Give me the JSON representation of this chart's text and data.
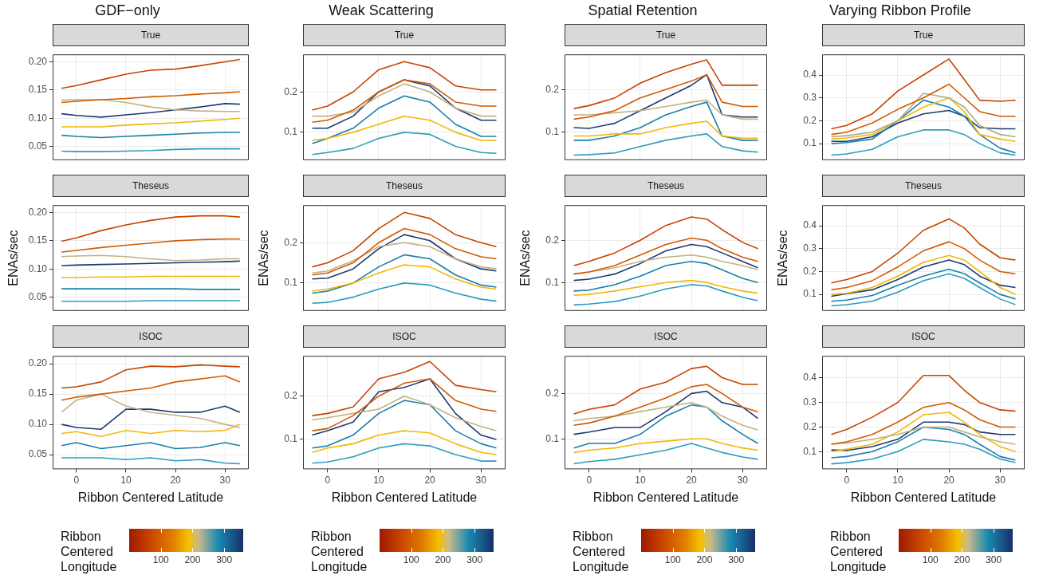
{
  "chart_data": [
    {
      "type": "line",
      "title": "GDF−only",
      "subtitle": "True",
      "x": [
        -3,
        0,
        5,
        10,
        15,
        20,
        25,
        30,
        33
      ],
      "xlim": [
        -4.8,
        34.8
      ],
      "xticks": [
        0,
        10,
        20,
        30
      ],
      "ylim": [
        0.026,
        0.213
      ],
      "yticks": [
        {
          "value": 0.05,
          "label": "0.05"
        },
        {
          "value": 0.1,
          "label": "0.10"
        },
        {
          "value": 0.15,
          "label": "0.15"
        },
        {
          "value": 0.2,
          "label": "0.20"
        }
      ],
      "grid": true,
      "tick_labels": "y",
      "series": [
        {
          "color": "#c84300",
          "values": [
            0.153,
            0.158,
            0.168,
            0.178,
            0.185,
            0.187,
            0.193,
            0.2,
            0.204
          ]
        },
        {
          "color": "#d25a00",
          "values": [
            0.128,
            0.13,
            0.133,
            0.135,
            0.138,
            0.14,
            0.143,
            0.145,
            0.147
          ]
        },
        {
          "color": "#c2b280",
          "values": [
            0.132,
            0.133,
            0.133,
            0.128,
            0.12,
            0.115,
            0.113,
            0.112,
            0.112
          ]
        },
        {
          "color": "#f2b705",
          "values": [
            0.085,
            0.085,
            0.085,
            0.088,
            0.09,
            0.092,
            0.095,
            0.098,
            0.1
          ]
        },
        {
          "color": "#1b3a73",
          "values": [
            0.108,
            0.105,
            0.102,
            0.106,
            0.11,
            0.115,
            0.12,
            0.126,
            0.125
          ]
        },
        {
          "color": "#1a7fa8",
          "values": [
            0.07,
            0.068,
            0.066,
            0.068,
            0.07,
            0.072,
            0.074,
            0.075,
            0.075
          ]
        },
        {
          "color": "#2a9cc0",
          "values": [
            0.042,
            0.041,
            0.041,
            0.042,
            0.043,
            0.045,
            0.046,
            0.046,
            0.046
          ]
        }
      ]
    },
    {
      "type": "line",
      "title": "Weak Scattering",
      "subtitle": "True",
      "x": [
        -3,
        0,
        5,
        10,
        15,
        20,
        25,
        30,
        33
      ],
      "xlim": [
        -4.8,
        34.8
      ],
      "xticks": [
        0,
        10,
        20,
        30
      ],
      "ylim": [
        0.031,
        0.293
      ],
      "yticks": [
        0.1,
        0.2
      ],
      "grid": true,
      "tick_labels": "y",
      "series": [
        {
          "color": "#c84300",
          "values": [
            0.155,
            0.165,
            0.2,
            0.255,
            0.275,
            0.26,
            0.215,
            0.205,
            0.205
          ]
        },
        {
          "color": "#d25a00",
          "values": [
            0.125,
            0.13,
            0.155,
            0.2,
            0.23,
            0.22,
            0.175,
            0.165,
            0.165
          ]
        },
        {
          "color": "#c2b280",
          "values": [
            0.14,
            0.14,
            0.15,
            0.19,
            0.22,
            0.2,
            0.16,
            0.14,
            0.14
          ]
        },
        {
          "color": "#f2b705",
          "values": [
            0.08,
            0.085,
            0.1,
            0.12,
            0.14,
            0.13,
            0.1,
            0.08,
            0.08
          ]
        },
        {
          "color": "#1b3a73",
          "values": [
            0.11,
            0.11,
            0.14,
            0.2,
            0.23,
            0.215,
            0.16,
            0.13,
            0.13
          ]
        },
        {
          "color": "#1a7fa8",
          "values": [
            0.072,
            0.085,
            0.11,
            0.16,
            0.19,
            0.175,
            0.12,
            0.09,
            0.09
          ]
        },
        {
          "color": "#2a9cc0",
          "values": [
            0.045,
            0.05,
            0.06,
            0.085,
            0.1,
            0.095,
            0.065,
            0.05,
            0.048
          ]
        }
      ]
    },
    {
      "type": "line",
      "title": "Spatial Retention",
      "subtitle": "True",
      "x": [
        -3,
        0,
        5,
        10,
        15,
        20,
        23,
        26,
        30,
        33
      ],
      "xlim": [
        -4.8,
        34.8
      ],
      "xticks": [
        0,
        10,
        20,
        30
      ],
      "ylim": [
        0.033,
        0.283
      ],
      "yticks": [
        0.1,
        0.2
      ],
      "grid": true,
      "tick_labels": "y",
      "series": [
        {
          "color": "#c84300",
          "values": [
            0.155,
            0.162,
            0.18,
            0.215,
            0.24,
            0.26,
            0.27,
            0.21,
            0.21,
            0.21
          ]
        },
        {
          "color": "#d25a00",
          "values": [
            0.13,
            0.135,
            0.15,
            0.18,
            0.2,
            0.22,
            0.235,
            0.17,
            0.16,
            0.16
          ]
        },
        {
          "color": "#c2b280",
          "values": [
            0.14,
            0.14,
            0.145,
            0.15,
            0.16,
            0.17,
            0.175,
            0.14,
            0.13,
            0.13
          ]
        },
        {
          "color": "#f2b705",
          "values": [
            0.09,
            0.09,
            0.095,
            0.095,
            0.11,
            0.12,
            0.125,
            0.09,
            0.085,
            0.085
          ]
        },
        {
          "color": "#1b3a73",
          "values": [
            0.11,
            0.108,
            0.12,
            0.15,
            0.18,
            0.21,
            0.235,
            0.14,
            0.135,
            0.135
          ]
        },
        {
          "color": "#1a7fa8",
          "values": [
            0.08,
            0.08,
            0.09,
            0.11,
            0.14,
            0.16,
            0.17,
            0.09,
            0.08,
            0.08
          ]
        },
        {
          "color": "#2a9cc0",
          "values": [
            0.045,
            0.046,
            0.05,
            0.065,
            0.08,
            0.09,
            0.095,
            0.065,
            0.055,
            0.052
          ]
        }
      ]
    },
    {
      "type": "line",
      "title": "Varying Ribbon Profile",
      "subtitle": "True",
      "x": [
        -3,
        0,
        5,
        10,
        15,
        20,
        23,
        26,
        30,
        33
      ],
      "xlim": [
        -4.8,
        34.8
      ],
      "xticks": [
        0,
        10,
        20,
        30
      ],
      "ylim": [
        0.028,
        0.49
      ],
      "yticks": [
        0.1,
        0.2,
        0.3,
        0.4
      ],
      "grid": true,
      "tick_labels": "y",
      "series": [
        {
          "color": "#c84300",
          "values": [
            0.165,
            0.18,
            0.23,
            0.33,
            0.4,
            0.47,
            0.38,
            0.29,
            0.285,
            0.29
          ]
        },
        {
          "color": "#d25a00",
          "values": [
            0.14,
            0.15,
            0.19,
            0.25,
            0.3,
            0.36,
            0.3,
            0.24,
            0.22,
            0.22
          ]
        },
        {
          "color": "#a9a98a",
          "values": [
            0.13,
            0.135,
            0.15,
            0.2,
            0.32,
            0.3,
            0.26,
            0.18,
            0.14,
            0.13
          ]
        },
        {
          "color": "#f2b705",
          "values": [
            0.12,
            0.125,
            0.14,
            0.2,
            0.26,
            0.3,
            0.24,
            0.14,
            0.12,
            0.11
          ]
        },
        {
          "color": "#1a7fa8",
          "values": [
            0.1,
            0.105,
            0.12,
            0.2,
            0.29,
            0.26,
            0.22,
            0.14,
            0.08,
            0.06
          ]
        },
        {
          "color": "#1b3a73",
          "values": [
            0.11,
            0.11,
            0.13,
            0.19,
            0.23,
            0.245,
            0.22,
            0.17,
            0.165,
            0.165
          ]
        },
        {
          "color": "#2a9cc0",
          "values": [
            0.05,
            0.055,
            0.075,
            0.13,
            0.16,
            0.16,
            0.14,
            0.1,
            0.06,
            0.05
          ]
        }
      ]
    },
    {
      "type": "line",
      "subtitle": "Theseus",
      "ylabel": "ENAs/sec",
      "x": [
        -3,
        0,
        5,
        10,
        15,
        20,
        25,
        30,
        33
      ],
      "xlim": [
        -4.8,
        34.8
      ],
      "xticks": [
        0,
        10,
        20,
        30
      ],
      "ylim": [
        0.026,
        0.213
      ],
      "yticks": [
        {
          "value": 0.05,
          "label": "0.05"
        },
        {
          "value": 0.1,
          "label": "0.10"
        },
        {
          "value": 0.15,
          "label": "0.15"
        },
        {
          "value": 0.2,
          "label": "0.20"
        }
      ],
      "grid": true,
      "tick_labels": "y",
      "series": [
        {
          "color": "#c84300",
          "values": [
            0.149,
            0.155,
            0.168,
            0.178,
            0.186,
            0.192,
            0.194,
            0.194,
            0.192
          ]
        },
        {
          "color": "#d25a00",
          "values": [
            0.13,
            0.133,
            0.138,
            0.142,
            0.146,
            0.15,
            0.152,
            0.153,
            0.153
          ]
        },
        {
          "color": "#c2b280",
          "values": [
            0.122,
            0.123,
            0.124,
            0.122,
            0.118,
            0.115,
            0.116,
            0.118,
            0.118
          ]
        },
        {
          "color": "#f2b705",
          "values": [
            0.085,
            0.085,
            0.086,
            0.086,
            0.087,
            0.087,
            0.087,
            0.087,
            0.087
          ]
        },
        {
          "color": "#1b3a73",
          "values": [
            0.106,
            0.107,
            0.108,
            0.109,
            0.11,
            0.111,
            0.112,
            0.113,
            0.114
          ]
        },
        {
          "color": "#1a7fa8",
          "values": [
            0.065,
            0.065,
            0.065,
            0.065,
            0.065,
            0.065,
            0.064,
            0.064,
            0.064
          ]
        },
        {
          "color": "#2a9cc0",
          "values": [
            0.043,
            0.043,
            0.043,
            0.043,
            0.044,
            0.044,
            0.044,
            0.044,
            0.044
          ]
        }
      ]
    },
    {
      "type": "line",
      "subtitle": "Theseus",
      "ylabel": "ENAs/sec",
      "x": [
        -3,
        0,
        5,
        10,
        15,
        20,
        25,
        30,
        33
      ],
      "xlim": [
        -4.8,
        34.8
      ],
      "xticks": [
        0,
        10,
        20,
        30
      ],
      "ylim": [
        0.031,
        0.293
      ],
      "yticks": [
        0.1,
        0.2
      ],
      "grid": true,
      "tick_labels": "y",
      "series": [
        {
          "color": "#c84300",
          "values": [
            0.14,
            0.15,
            0.18,
            0.235,
            0.275,
            0.26,
            0.22,
            0.2,
            0.19
          ]
        },
        {
          "color": "#d25a00",
          "values": [
            0.12,
            0.125,
            0.15,
            0.2,
            0.235,
            0.22,
            0.185,
            0.165,
            0.16
          ]
        },
        {
          "color": "#c2b280",
          "values": [
            0.125,
            0.13,
            0.155,
            0.19,
            0.2,
            0.19,
            0.16,
            0.14,
            0.135
          ]
        },
        {
          "color": "#f2b705",
          "values": [
            0.08,
            0.085,
            0.1,
            0.125,
            0.145,
            0.14,
            0.11,
            0.09,
            0.085
          ]
        },
        {
          "color": "#1b3a73",
          "values": [
            0.11,
            0.112,
            0.135,
            0.185,
            0.22,
            0.205,
            0.16,
            0.135,
            0.13
          ]
        },
        {
          "color": "#1a7fa8",
          "values": [
            0.075,
            0.08,
            0.1,
            0.14,
            0.17,
            0.16,
            0.12,
            0.095,
            0.09
          ]
        },
        {
          "color": "#2a9cc0",
          "values": [
            0.05,
            0.052,
            0.065,
            0.085,
            0.1,
            0.095,
            0.075,
            0.06,
            0.055
          ]
        }
      ]
    },
    {
      "type": "line",
      "subtitle": "Theseus",
      "ylabel": "ENAs/sec",
      "x": [
        -3,
        0,
        5,
        10,
        15,
        20,
        23,
        26,
        30,
        33
      ],
      "xlim": [
        -4.8,
        34.8
      ],
      "xticks": [
        0,
        10,
        20,
        30
      ],
      "ylim": [
        0.033,
        0.283
      ],
      "yticks": [
        0.1,
        0.2
      ],
      "grid": true,
      "tick_labels": "y",
      "series": [
        {
          "color": "#c84300",
          "values": [
            0.14,
            0.15,
            0.17,
            0.2,
            0.235,
            0.255,
            0.25,
            0.225,
            0.195,
            0.18
          ]
        },
        {
          "color": "#d25a00",
          "values": [
            0.12,
            0.125,
            0.14,
            0.165,
            0.19,
            0.205,
            0.2,
            0.18,
            0.16,
            0.15
          ]
        },
        {
          "color": "#c2b280",
          "values": [
            0.12,
            0.125,
            0.135,
            0.15,
            0.16,
            0.165,
            0.16,
            0.15,
            0.14,
            0.13
          ]
        },
        {
          "color": "#f2b705",
          "values": [
            0.07,
            0.072,
            0.08,
            0.09,
            0.1,
            0.105,
            0.1,
            0.09,
            0.08,
            0.075
          ]
        },
        {
          "color": "#1b3a73",
          "values": [
            0.105,
            0.108,
            0.12,
            0.145,
            0.175,
            0.19,
            0.185,
            0.17,
            0.15,
            0.135
          ]
        },
        {
          "color": "#1a7fa8",
          "values": [
            0.08,
            0.082,
            0.095,
            0.115,
            0.14,
            0.15,
            0.145,
            0.13,
            0.11,
            0.1
          ]
        },
        {
          "color": "#2a9cc0",
          "values": [
            0.047,
            0.049,
            0.055,
            0.068,
            0.085,
            0.095,
            0.092,
            0.08,
            0.065,
            0.057
          ]
        }
      ]
    },
    {
      "type": "line",
      "subtitle": "Theseus",
      "ylabel": "ENAs/sec",
      "x": [
        -3,
        0,
        5,
        10,
        15,
        20,
        23,
        26,
        30,
        33
      ],
      "xlim": [
        -4.8,
        34.8
      ],
      "xticks": [
        0,
        10,
        20,
        30
      ],
      "ylim": [
        0.028,
        0.49
      ],
      "yticks": [
        0.1,
        0.2,
        0.3,
        0.4
      ],
      "grid": true,
      "tick_labels": "y",
      "series": [
        {
          "color": "#c84300",
          "values": [
            0.15,
            0.165,
            0.2,
            0.28,
            0.38,
            0.43,
            0.39,
            0.32,
            0.26,
            0.25
          ]
        },
        {
          "color": "#d25a00",
          "values": [
            0.12,
            0.13,
            0.16,
            0.22,
            0.29,
            0.33,
            0.3,
            0.25,
            0.2,
            0.19
          ]
        },
        {
          "color": "#f2b705",
          "values": [
            0.1,
            0.105,
            0.13,
            0.18,
            0.24,
            0.27,
            0.25,
            0.2,
            0.13,
            0.1
          ]
        },
        {
          "color": "#1b3a73",
          "values": [
            0.092,
            0.103,
            0.12,
            0.165,
            0.22,
            0.25,
            0.23,
            0.18,
            0.14,
            0.13
          ]
        },
        {
          "color": "#1a7fa8",
          "values": [
            0.07,
            0.075,
            0.095,
            0.14,
            0.18,
            0.21,
            0.19,
            0.15,
            0.1,
            0.08
          ]
        },
        {
          "color": "#2a9cc0",
          "values": [
            0.05,
            0.055,
            0.07,
            0.11,
            0.16,
            0.19,
            0.17,
            0.13,
            0.08,
            0.055
          ]
        }
      ]
    },
    {
      "type": "line",
      "subtitle": "ISOC",
      "xlabel": "Ribbon Centered Latitude",
      "clabel": "Ribbon Centered Longitude",
      "clim": [
        0,
        360
      ],
      "cticks": [
        100,
        200,
        300
      ],
      "x": [
        -3,
        0,
        5,
        10,
        15,
        20,
        25,
        30,
        33
      ],
      "xlim": [
        -4.8,
        34.8
      ],
      "xticks": [
        0,
        10,
        20,
        30
      ],
      "ylim": [
        0.026,
        0.213
      ],
      "yticks": [
        {
          "value": 0.05,
          "label": "0.05"
        },
        {
          "value": 0.1,
          "label": "0.10"
        },
        {
          "value": 0.15,
          "label": "0.15"
        },
        {
          "value": 0.2,
          "label": "0.20"
        }
      ],
      "grid": true,
      "series": [
        {
          "color": "#c84300",
          "values": [
            0.16,
            0.162,
            0.17,
            0.19,
            0.196,
            0.195,
            0.198,
            0.196,
            0.195
          ]
        },
        {
          "color": "#d25a00",
          "values": [
            0.14,
            0.145,
            0.15,
            0.155,
            0.16,
            0.17,
            0.175,
            0.18,
            0.17
          ]
        },
        {
          "color": "#c2b280",
          "values": [
            0.12,
            0.14,
            0.15,
            0.13,
            0.12,
            0.115,
            0.11,
            0.1,
            0.095
          ]
        },
        {
          "color": "#f2b705",
          "values": [
            0.085,
            0.088,
            0.08,
            0.09,
            0.085,
            0.09,
            0.088,
            0.09,
            0.1
          ]
        },
        {
          "color": "#1b3a73",
          "values": [
            0.1,
            0.095,
            0.092,
            0.125,
            0.125,
            0.12,
            0.12,
            0.13,
            0.12
          ]
        },
        {
          "color": "#1a7fa8",
          "values": [
            0.065,
            0.07,
            0.06,
            0.065,
            0.07,
            0.06,
            0.062,
            0.07,
            0.065
          ]
        },
        {
          "color": "#2a9cc0",
          "values": [
            0.045,
            0.045,
            0.045,
            0.042,
            0.045,
            0.04,
            0.042,
            0.036,
            0.035
          ]
        }
      ]
    },
    {
      "type": "line",
      "subtitle": "ISOC",
      "xlabel": "Ribbon Centered Latitude",
      "clabel": "Ribbon Centered Longitude",
      "clim": [
        0,
        360
      ],
      "cticks": [
        100,
        200,
        300
      ],
      "x": [
        -3,
        0,
        5,
        10,
        15,
        20,
        25,
        30,
        33
      ],
      "xlim": [
        -4.8,
        34.8
      ],
      "xticks": [
        0,
        10,
        20,
        30
      ],
      "ylim": [
        0.031,
        0.293
      ],
      "yticks": [
        0.1,
        0.2
      ],
      "grid": true,
      "series": [
        {
          "color": "#c84300",
          "values": [
            0.155,
            0.16,
            0.175,
            0.24,
            0.255,
            0.28,
            0.225,
            0.215,
            0.21
          ]
        },
        {
          "color": "#d25a00",
          "values": [
            0.12,
            0.125,
            0.155,
            0.2,
            0.23,
            0.24,
            0.19,
            0.17,
            0.165
          ]
        },
        {
          "color": "#c2b280",
          "values": [
            0.145,
            0.15,
            0.16,
            0.17,
            0.2,
            0.18,
            0.15,
            0.13,
            0.12
          ]
        },
        {
          "color": "#f2b705",
          "values": [
            0.07,
            0.08,
            0.09,
            0.11,
            0.12,
            0.115,
            0.09,
            0.07,
            0.065
          ]
        },
        {
          "color": "#1b3a73",
          "values": [
            0.11,
            0.12,
            0.14,
            0.21,
            0.22,
            0.24,
            0.16,
            0.11,
            0.1
          ]
        },
        {
          "color": "#1a7fa8",
          "values": [
            0.08,
            0.085,
            0.11,
            0.16,
            0.19,
            0.18,
            0.12,
            0.09,
            0.08
          ]
        },
        {
          "color": "#2a9cc0",
          "values": [
            0.045,
            0.048,
            0.06,
            0.08,
            0.09,
            0.085,
            0.065,
            0.05,
            0.05
          ]
        }
      ]
    },
    {
      "type": "line",
      "subtitle": "ISOC",
      "xlabel": "Ribbon Centered Latitude",
      "clabel": "Ribbon Centered Longitude",
      "clim": [
        0,
        360
      ],
      "cticks": [
        100,
        200,
        300
      ],
      "x": [
        -3,
        0,
        5,
        10,
        15,
        20,
        23,
        26,
        30,
        33
      ],
      "xlim": [
        -4.8,
        34.8
      ],
      "xticks": [
        0,
        10,
        20,
        30
      ],
      "ylim": [
        0.033,
        0.283
      ],
      "yticks": [
        0.1,
        0.2
      ],
      "grid": true,
      "series": [
        {
          "color": "#c84300",
          "values": [
            0.155,
            0.165,
            0.175,
            0.21,
            0.225,
            0.255,
            0.26,
            0.235,
            0.22,
            0.22
          ]
        },
        {
          "color": "#d25a00",
          "values": [
            0.13,
            0.135,
            0.15,
            0.17,
            0.19,
            0.215,
            0.22,
            0.2,
            0.17,
            0.16
          ]
        },
        {
          "color": "#c2b280",
          "values": [
            0.14,
            0.145,
            0.15,
            0.16,
            0.17,
            0.18,
            0.17,
            0.15,
            0.13,
            0.12
          ]
        },
        {
          "color": "#f2b705",
          "values": [
            0.07,
            0.075,
            0.08,
            0.09,
            0.095,
            0.1,
            0.1,
            0.09,
            0.08,
            0.075
          ]
        },
        {
          "color": "#1b3a73",
          "values": [
            0.11,
            0.115,
            0.125,
            0.125,
            0.16,
            0.2,
            0.205,
            0.18,
            0.17,
            0.145
          ]
        },
        {
          "color": "#1a7fa8",
          "values": [
            0.08,
            0.09,
            0.09,
            0.11,
            0.15,
            0.175,
            0.17,
            0.14,
            0.11,
            0.09
          ]
        },
        {
          "color": "#2a9cc0",
          "values": [
            0.045,
            0.05,
            0.055,
            0.065,
            0.075,
            0.09,
            0.08,
            0.07,
            0.06,
            0.055
          ]
        }
      ]
    },
    {
      "type": "line",
      "subtitle": "ISOC",
      "xlabel": "Ribbon Centered Latitude",
      "clabel": "Ribbon Centered Longitude",
      "clim": [
        0,
        360
      ],
      "cticks": [
        100,
        200,
        300
      ],
      "x": [
        -3,
        0,
        5,
        10,
        15,
        20,
        23,
        26,
        30,
        33
      ],
      "xlim": [
        -4.8,
        34.8
      ],
      "xticks": [
        0,
        10,
        20,
        30
      ],
      "ylim": [
        0.028,
        0.49
      ],
      "yticks": [
        0.1,
        0.2,
        0.3,
        0.4
      ],
      "grid": true,
      "series": [
        {
          "color": "#c84300",
          "values": [
            0.17,
            0.19,
            0.24,
            0.3,
            0.41,
            0.41,
            0.35,
            0.3,
            0.27,
            0.265
          ]
        },
        {
          "color": "#d25a00",
          "values": [
            0.13,
            0.14,
            0.17,
            0.22,
            0.28,
            0.3,
            0.27,
            0.23,
            0.2,
            0.2
          ]
        },
        {
          "color": "#c2b280",
          "values": [
            0.13,
            0.135,
            0.15,
            0.17,
            0.2,
            0.2,
            0.18,
            0.16,
            0.14,
            0.13
          ]
        },
        {
          "color": "#f2b705",
          "values": [
            0.1,
            0.11,
            0.13,
            0.18,
            0.25,
            0.26,
            0.22,
            0.17,
            0.12,
            0.1
          ]
        },
        {
          "color": "#1b3a73",
          "values": [
            0.107,
            0.105,
            0.12,
            0.15,
            0.22,
            0.22,
            0.21,
            0.18,
            0.17,
            0.17
          ]
        },
        {
          "color": "#1a7fa8",
          "values": [
            0.075,
            0.08,
            0.1,
            0.14,
            0.2,
            0.19,
            0.17,
            0.13,
            0.08,
            0.065
          ]
        },
        {
          "color": "#2a9cc0",
          "values": [
            0.05,
            0.055,
            0.07,
            0.1,
            0.15,
            0.14,
            0.13,
            0.11,
            0.07,
            0.055
          ]
        }
      ]
    }
  ]
}
